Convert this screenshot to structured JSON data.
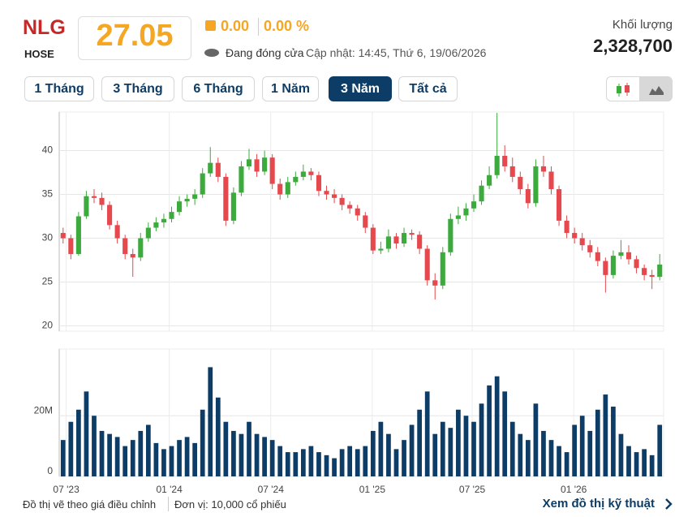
{
  "header": {
    "ticker": "NLG",
    "exchange": "HOSE",
    "price": "27.05",
    "change": "0.00",
    "change_pct": "0.00 %",
    "status": "Đang đóng cửa",
    "updated": "Cập nhật: 14:45, Thứ 6, 19/06/2026",
    "volume_label": "Khối lượng",
    "volume": "2,328,700"
  },
  "range_buttons": [
    "1 Tháng",
    "3 Tháng",
    "6 Tháng",
    "1 Năm",
    "3 Năm",
    "Tất cả"
  ],
  "active_range": 4,
  "footer": {
    "note": "Đồ thị vẽ theo giá điều chỉnh",
    "unit": "Đơn vị: 10,000 cổ phiếu",
    "link": "Xem đồ thị kỹ thuật"
  },
  "chart_data": [
    {
      "type": "candlestick",
      "up_color": "#3daa3d",
      "down_color": "#e5484d",
      "grid": true,
      "xlim": [
        -0.5,
        77.5
      ],
      "xticks": [
        0.4,
        13.7,
        26.8,
        39.9,
        52.8,
        65.9
      ],
      "ylim": [
        19.4,
        44.4
      ],
      "yticks": [
        20,
        25,
        30,
        35,
        40
      ],
      "ohlc": [
        [
          30.6,
          31.2,
          29.4,
          30.0
        ],
        [
          30.0,
          30.4,
          27.6,
          28.2
        ],
        [
          28.2,
          33.0,
          28.0,
          32.5
        ],
        [
          32.5,
          35.4,
          32.2,
          34.8
        ],
        [
          34.8,
          35.6,
          34.0,
          34.6
        ],
        [
          34.6,
          35.2,
          33.2,
          33.8
        ],
        [
          33.8,
          34.2,
          31.0,
          31.5
        ],
        [
          31.5,
          32.0,
          29.4,
          30.0
        ],
        [
          30.0,
          30.4,
          27.6,
          28.2
        ],
        [
          28.2,
          28.8,
          25.6,
          27.8
        ],
        [
          27.8,
          30.6,
          27.4,
          30.0
        ],
        [
          30.0,
          31.8,
          29.6,
          31.2
        ],
        [
          31.2,
          32.4,
          30.8,
          31.8
        ],
        [
          31.8,
          32.8,
          31.2,
          32.2
        ],
        [
          32.2,
          33.6,
          31.8,
          33.0
        ],
        [
          33.0,
          34.8,
          32.6,
          34.2
        ],
        [
          34.2,
          35.0,
          33.6,
          34.5
        ],
        [
          34.5,
          35.6,
          33.8,
          35.0
        ],
        [
          35.0,
          38.0,
          34.6,
          37.4
        ],
        [
          37.4,
          40.4,
          37.0,
          38.6
        ],
        [
          38.6,
          39.2,
          36.4,
          37.0
        ],
        [
          37.0,
          37.4,
          31.4,
          32.0
        ],
        [
          32.0,
          35.8,
          31.6,
          35.2
        ],
        [
          35.2,
          38.8,
          34.8,
          38.2
        ],
        [
          38.2,
          40.2,
          37.8,
          39.0
        ],
        [
          39.0,
          39.6,
          37.0,
          37.6
        ],
        [
          37.6,
          40.0,
          37.2,
          39.2
        ],
        [
          39.2,
          39.6,
          35.6,
          36.2
        ],
        [
          36.2,
          36.8,
          34.4,
          35.0
        ],
        [
          35.0,
          37.0,
          34.6,
          36.4
        ],
        [
          36.4,
          37.6,
          36.0,
          37.0
        ],
        [
          37.0,
          38.4,
          36.6,
          37.6
        ],
        [
          37.6,
          38.0,
          36.6,
          37.2
        ],
        [
          37.2,
          37.6,
          34.8,
          35.4
        ],
        [
          35.4,
          36.0,
          34.4,
          35.0
        ],
        [
          35.0,
          35.6,
          34.0,
          34.6
        ],
        [
          34.6,
          35.0,
          33.2,
          33.8
        ],
        [
          33.8,
          34.2,
          32.8,
          33.4
        ],
        [
          33.4,
          33.8,
          32.0,
          32.6
        ],
        [
          32.6,
          33.0,
          30.6,
          31.2
        ],
        [
          31.2,
          31.6,
          28.2,
          28.6
        ],
        [
          28.6,
          29.6,
          28.2,
          28.8
        ],
        [
          28.8,
          31.0,
          28.4,
          30.2
        ],
        [
          30.2,
          30.6,
          28.8,
          29.4
        ],
        [
          29.4,
          31.2,
          29.0,
          30.6
        ],
        [
          30.6,
          31.0,
          29.8,
          30.4
        ],
        [
          30.4,
          30.8,
          28.2,
          28.8
        ],
        [
          28.8,
          29.2,
          24.6,
          25.2
        ],
        [
          25.2,
          26.0,
          23.0,
          24.6
        ],
        [
          24.6,
          29.0,
          24.2,
          28.4
        ],
        [
          28.4,
          32.8,
          28.0,
          32.2
        ],
        [
          32.2,
          33.6,
          31.6,
          32.6
        ],
        [
          32.6,
          34.0,
          32.0,
          33.4
        ],
        [
          33.4,
          35.0,
          33.0,
          34.2
        ],
        [
          34.2,
          36.6,
          33.8,
          36.0
        ],
        [
          36.0,
          38.2,
          35.6,
          37.2
        ],
        [
          37.2,
          44.3,
          36.8,
          39.4
        ],
        [
          39.4,
          40.6,
          37.6,
          38.2
        ],
        [
          38.2,
          39.2,
          36.4,
          37.0
        ],
        [
          37.0,
          37.6,
          35.0,
          35.6
        ],
        [
          35.6,
          36.2,
          33.4,
          34.0
        ],
        [
          34.0,
          39.0,
          33.6,
          38.2
        ],
        [
          38.2,
          39.4,
          37.0,
          37.6
        ],
        [
          37.6,
          38.2,
          35.0,
          35.6
        ],
        [
          35.6,
          36.0,
          31.4,
          32.0
        ],
        [
          32.0,
          32.6,
          30.0,
          30.6
        ],
        [
          30.6,
          31.2,
          29.4,
          30.0
        ],
        [
          30.0,
          30.6,
          28.6,
          29.2
        ],
        [
          29.2,
          29.8,
          27.8,
          28.4
        ],
        [
          28.4,
          29.0,
          26.8,
          27.4
        ],
        [
          27.4,
          27.8,
          23.8,
          25.8
        ],
        [
          25.8,
          28.6,
          25.4,
          28.0
        ],
        [
          28.0,
          29.8,
          27.6,
          28.4
        ],
        [
          28.4,
          29.2,
          27.0,
          27.6
        ],
        [
          27.6,
          28.0,
          26.0,
          26.6
        ],
        [
          26.6,
          27.0,
          25.2,
          25.8
        ],
        [
          25.8,
          26.4,
          24.2,
          25.6
        ],
        [
          25.6,
          28.2,
          25.2,
          27.0
        ]
      ]
    },
    {
      "type": "bar",
      "color": "#0d3d66",
      "grid": true,
      "xlim": [
        -0.5,
        77.5
      ],
      "xticks": [
        {
          "value": 0.4,
          "label": "07 '23"
        },
        {
          "value": 13.7,
          "label": "01 '24"
        },
        {
          "value": 26.8,
          "label": "07 '24"
        },
        {
          "value": 39.9,
          "label": "01 '25"
        },
        {
          "value": 52.8,
          "label": "07 '25"
        },
        {
          "value": 65.9,
          "label": "01 '26"
        }
      ],
      "ylim": [
        0,
        42000000
      ],
      "yticks": [
        0,
        {
          "value": 20000000,
          "label": "20M"
        }
      ],
      "values": [
        12000000,
        18000000,
        22000000,
        28000000,
        20000000,
        15000000,
        14000000,
        13000000,
        10000000,
        12000000,
        15000000,
        17000000,
        11000000,
        9000000,
        10000000,
        12000000,
        13000000,
        11000000,
        22000000,
        36000000,
        26000000,
        18000000,
        15000000,
        14000000,
        18000000,
        14000000,
        13000000,
        12000000,
        10000000,
        8000000,
        8000000,
        9000000,
        10000000,
        8000000,
        7000000,
        6000000,
        9000000,
        10000000,
        9000000,
        10000000,
        15000000,
        18000000,
        14000000,
        9000000,
        12000000,
        17000000,
        22000000,
        28000000,
        14000000,
        18000000,
        16000000,
        22000000,
        20000000,
        18000000,
        24000000,
        30000000,
        33000000,
        28000000,
        18000000,
        14000000,
        12000000,
        24000000,
        15000000,
        12000000,
        10000000,
        8000000,
        17000000,
        20000000,
        15000000,
        22000000,
        27000000,
        23000000,
        14000000,
        10000000,
        8000000,
        9000000,
        7000000,
        17000000
      ]
    }
  ]
}
